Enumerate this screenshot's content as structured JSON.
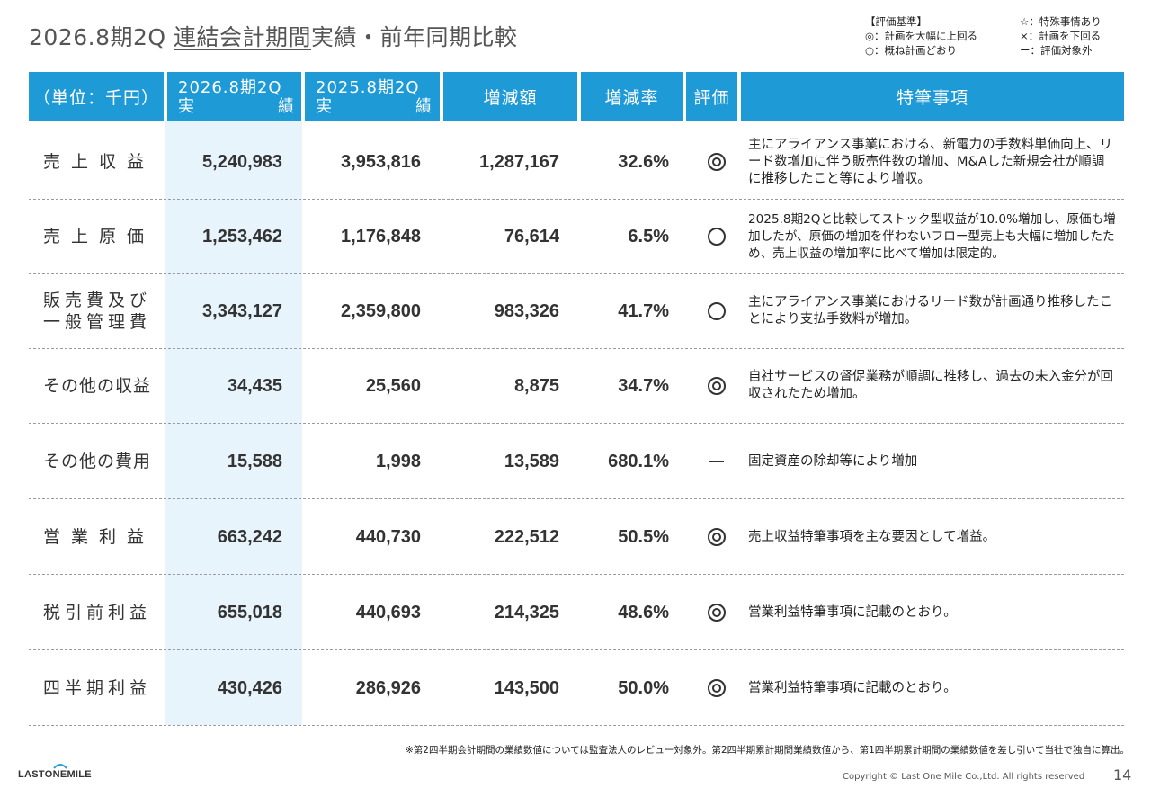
{
  "title": {
    "prefix": "2026.8期2Q ",
    "underlined": "連結会計期間",
    "suffix": "実績・前年同期比較"
  },
  "legend": {
    "heading": "【評価基準】",
    "items_left": [
      "◎：計画を大幅に上回る",
      "○：概ね計画どおり"
    ],
    "items_right": [
      "☆：特殊事情あり",
      "×：計画を下回る",
      "ー：評価対象外"
    ]
  },
  "header": {
    "unit": "（単位：千円）",
    "col1_line1": "2026.8期2Q",
    "col1_a": "実",
    "col1_b": "績",
    "col2_line1": "2025.8期2Q",
    "col2_a": "実",
    "col2_b": "績",
    "diff": "増減額",
    "rate": "増減率",
    "eval": "評価",
    "notes": "特筆事項"
  },
  "rows": [
    {
      "label": "売上収益",
      "current": "5,240,983",
      "previous": "3,953,816",
      "diff": "1,287,167",
      "rate": "32.6%",
      "eval": "double-circle",
      "note": "主にアライアンス事業における、新電力の手数料単価向上、リード数増加に伴う販売件数の増加、M&Aした新規会社が順調に推移したこと等により増収。"
    },
    {
      "label": "売上原価",
      "current": "1,253,462",
      "previous": "1,176,848",
      "diff": "76,614",
      "rate": "6.5%",
      "eval": "circle",
      "note": "2025.8期2Qと比較してストック型収益が10.0%増加し、原価も増加したが、原価の増加を伴わないフロー型売上も大幅に増加したため、売上収益の増加率に比べて増加は限定的。"
    },
    {
      "label": "販売費及び一般管理費",
      "label_line1": "販売費及び",
      "label_line2": "一般管理費",
      "current": "3,343,127",
      "previous": "2,359,800",
      "diff": "983,326",
      "rate": "41.7%",
      "eval": "circle",
      "note": "主にアライアンス事業におけるリード数が計画通り推移したことにより支払手数料が増加。"
    },
    {
      "label": "その他の収益",
      "current": "34,435",
      "previous": "25,560",
      "diff": "8,875",
      "rate": "34.7%",
      "eval": "double-circle",
      "note": "自社サービスの督促業務が順調に推移し、過去の未入金分が回収されたため増加。"
    },
    {
      "label": "その他の費用",
      "current": "15,588",
      "previous": "1,998",
      "diff": "13,589",
      "rate": "680.1%",
      "eval": "dash",
      "note": "固定資産の除却等により増加"
    },
    {
      "label": "営業利益",
      "current": "663,242",
      "previous": "440,730",
      "diff": "222,512",
      "rate": "50.5%",
      "eval": "double-circle",
      "note": "売上収益特筆事項を主な要因として増益。"
    },
    {
      "label": "税引前利益",
      "current": "655,018",
      "previous": "440,693",
      "diff": "214,325",
      "rate": "48.6%",
      "eval": "double-circle",
      "note": "営業利益特筆事項に記載のとおり。"
    },
    {
      "label": "四半期利益",
      "current": "430,426",
      "previous": "286,926",
      "diff": "143,500",
      "rate": "50.0%",
      "eval": "double-circle",
      "note": "営業利益特筆事項に記載のとおり。"
    }
  ],
  "footnote": "※第2四半期会計期間の業績数値については監査法人のレビュー対象外。第2四半期累計期間業績数値から、第1四半期累計期間の業績数値を差し引いて当社で独自に算出。",
  "logo": "LASTONEMILE",
  "copyright": "Copyright © Last One Mile Co.,Ltd. All rights reserved",
  "page_number": "14",
  "colors": {
    "header": "#1e9ad7",
    "highlight": "#e7f4fc"
  }
}
